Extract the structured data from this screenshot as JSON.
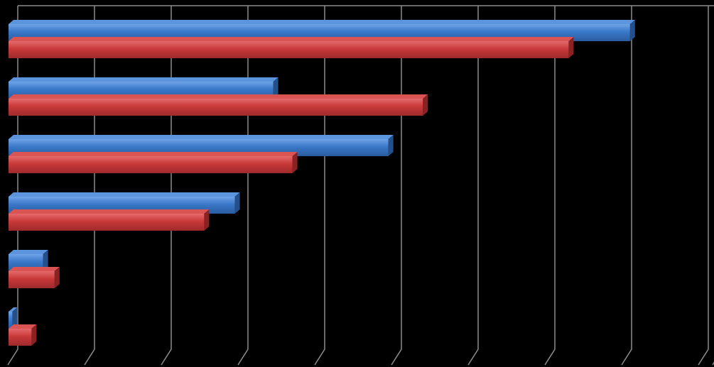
{
  "chart_data": {
    "type": "bar",
    "orientation": "horizontal",
    "style": "3d-clustered",
    "categories": [
      "",
      "",
      "",
      "",
      "",
      ""
    ],
    "series": [
      {
        "color": "#3A78C9",
        "values": [
          8.1,
          3.45,
          4.95,
          2.95,
          0.45,
          0.05
        ]
      },
      {
        "color": "#C9393A",
        "values": [
          7.3,
          5.4,
          3.7,
          2.55,
          0.6,
          0.3
        ]
      }
    ],
    "xlim": [
      0,
      9
    ],
    "grid": true,
    "legend": "none",
    "background": "#000000",
    "gridline_color": "#8C8C8C"
  }
}
